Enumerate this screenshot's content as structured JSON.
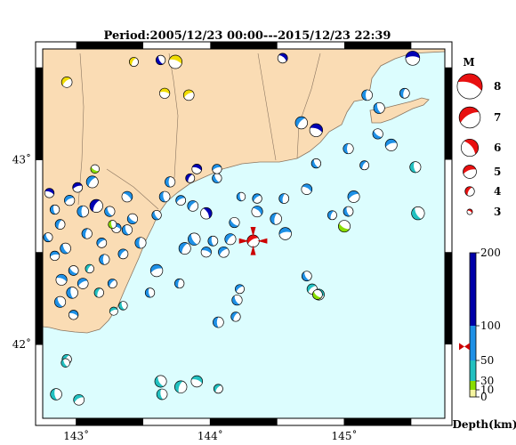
{
  "title": "Period:2005/12/23 00:00---2015/12/23 22:39",
  "map": {
    "lon_range": [
      142.75,
      145.75
    ],
    "lat_range": [
      41.6,
      43.6
    ],
    "lon_ticks": [
      {
        "value": 143,
        "label": "143˚"
      },
      {
        "value": 144,
        "label": "144˚"
      },
      {
        "value": 145,
        "label": "145˚"
      }
    ],
    "lat_ticks": [
      {
        "value": 43,
        "label": "43˚"
      },
      {
        "value": 42,
        "label": "42˚"
      }
    ],
    "colors": {
      "land": "#fadcb4",
      "sea": "#dcfdfe",
      "coast": "#8a7560"
    }
  },
  "magnitude_legend": {
    "title": "M",
    "entries": [
      {
        "label": "8",
        "mag": 8
      },
      {
        "label": "7",
        "mag": 7
      },
      {
        "label": "6",
        "mag": 6
      },
      {
        "label": "5",
        "mag": 5
      },
      {
        "label": "4",
        "mag": 4
      },
      {
        "label": "3",
        "mag": 3
      }
    ]
  },
  "depth_scale": {
    "label": "Depth(km)",
    "ticks": [
      {
        "label": "200",
        "value": 200
      },
      {
        "label": "100",
        "value": 100
      },
      {
        "label": "50",
        "value": 50
      },
      {
        "label": "30",
        "value": 30
      },
      {
        "label": "10",
        "value": 10
      },
      {
        "label": "0",
        "value": 0
      }
    ],
    "bands": [
      {
        "from": 0,
        "to": 10,
        "color": "#f5f5a0"
      },
      {
        "from": 10,
        "to": 30,
        "color": "#88dd00"
      },
      {
        "from": 30,
        "to": 50,
        "color": "#22c0c0"
      },
      {
        "from": 50,
        "to": 100,
        "color": "#1e90e6"
      },
      {
        "from": 100,
        "to": 200,
        "color": "#0000a8"
      }
    ],
    "marker_value": 70
  },
  "events": [
    {
      "lon": 142.93,
      "lat": 43.42,
      "mag": 4.3,
      "color": "#f0dc00",
      "rot": 140
    },
    {
      "lon": 143.74,
      "lat": 43.53,
      "mag": 5.0,
      "color": "#f0dc00",
      "rot": 200
    },
    {
      "lon": 143.43,
      "lat": 43.53,
      "mag": 3.9,
      "color": "#f0dc00",
      "rot": 120
    },
    {
      "lon": 143.63,
      "lat": 43.54,
      "mag": 4.0,
      "color": "#0000b4",
      "rot": 60
    },
    {
      "lon": 143.66,
      "lat": 43.36,
      "mag": 4.2,
      "color": "#f0dc00",
      "rot": 190
    },
    {
      "lon": 143.84,
      "lat": 43.35,
      "mag": 4.3,
      "color": "#f0dc00",
      "rot": 150
    },
    {
      "lon": 144.54,
      "lat": 43.55,
      "mag": 4.1,
      "color": "#0000b4",
      "rot": 220
    },
    {
      "lon": 145.51,
      "lat": 43.55,
      "mag": 5.2,
      "color": "#0000b4",
      "rot": 180
    },
    {
      "lon": 145.17,
      "lat": 43.35,
      "mag": 4.3,
      "color": "#1e90e6",
      "rot": 90
    },
    {
      "lon": 145.26,
      "lat": 43.28,
      "mag": 4.4,
      "color": "#1e90e6",
      "rot": 70
    },
    {
      "lon": 145.45,
      "lat": 43.36,
      "mag": 4.1,
      "color": "#1e90e6",
      "rot": 100
    },
    {
      "lon": 145.25,
      "lat": 43.14,
      "mag": 4.2,
      "color": "#1e90e6",
      "rot": 40
    },
    {
      "lon": 145.35,
      "lat": 43.08,
      "mag": 4.6,
      "color": "#1e90e6",
      "rot": 160
    },
    {
      "lon": 144.68,
      "lat": 43.2,
      "mag": 4.7,
      "color": "#1e90e6",
      "rot": 130
    },
    {
      "lon": 144.79,
      "lat": 43.16,
      "mag": 4.9,
      "color": "#0000b4",
      "rot": 200
    },
    {
      "lon": 145.03,
      "lat": 43.06,
      "mag": 4.2,
      "color": "#1e90e6",
      "rot": 90
    },
    {
      "lon": 144.79,
      "lat": 42.98,
      "mag": 4.0,
      "color": "#1e90e6",
      "rot": 60
    },
    {
      "lon": 145.15,
      "lat": 42.97,
      "mag": 3.9,
      "color": "#1e90e6",
      "rot": 120
    },
    {
      "lon": 145.53,
      "lat": 42.96,
      "mag": 4.4,
      "color": "#22c0c0",
      "rot": 80
    },
    {
      "lon": 144.72,
      "lat": 42.84,
      "mag": 4.3,
      "color": "#1e90e6",
      "rot": 210
    },
    {
      "lon": 145.07,
      "lat": 42.8,
      "mag": 4.6,
      "color": "#1e90e6",
      "rot": 150
    },
    {
      "lon": 145.03,
      "lat": 42.72,
      "mag": 4.1,
      "color": "#1e90e6",
      "rot": 70
    },
    {
      "lon": 144.91,
      "lat": 42.7,
      "mag": 3.9,
      "color": "#1e90e6",
      "rot": 110
    },
    {
      "lon": 145.0,
      "lat": 42.64,
      "mag": 4.6,
      "color": "#88dd00",
      "rot": 30
    },
    {
      "lon": 145.55,
      "lat": 42.71,
      "mag": 4.9,
      "color": "#22c0c0",
      "rot": 60
    },
    {
      "lon": 144.55,
      "lat": 42.79,
      "mag": 4.1,
      "color": "#1e90e6",
      "rot": 100
    },
    {
      "lon": 144.35,
      "lat": 42.79,
      "mag": 4.0,
      "color": "#1e90e6",
      "rot": 140
    },
    {
      "lon": 144.23,
      "lat": 42.8,
      "mag": 3.8,
      "color": "#1e90e6",
      "rot": 80
    },
    {
      "lon": 144.05,
      "lat": 42.9,
      "mag": 4.0,
      "color": "#1e90e6",
      "rot": 60
    },
    {
      "lon": 144.05,
      "lat": 42.95,
      "mag": 4.0,
      "color": "#1e90e6",
      "rot": 160
    },
    {
      "lon": 143.9,
      "lat": 42.95,
      "mag": 4.1,
      "color": "#0000b4",
      "rot": 200
    },
    {
      "lon": 143.85,
      "lat": 42.9,
      "mag": 3.9,
      "color": "#0000b4",
      "rot": 120
    },
    {
      "lon": 143.7,
      "lat": 42.88,
      "mag": 4.2,
      "color": "#1e90e6",
      "rot": 90
    },
    {
      "lon": 143.97,
      "lat": 42.71,
      "mag": 4.5,
      "color": "#0000b4",
      "rot": 240
    },
    {
      "lon": 143.87,
      "lat": 42.75,
      "mag": 4.3,
      "color": "#1e90e6",
      "rot": 130
    },
    {
      "lon": 143.78,
      "lat": 42.78,
      "mag": 4.1,
      "color": "#1e90e6",
      "rot": 150
    },
    {
      "lon": 143.66,
      "lat": 42.8,
      "mag": 4.3,
      "color": "#1e90e6",
      "rot": 80
    },
    {
      "lon": 143.6,
      "lat": 42.7,
      "mag": 4.0,
      "color": "#1e90e6",
      "rot": 60
    },
    {
      "lon": 144.18,
      "lat": 42.66,
      "mag": 4.2,
      "color": "#1e90e6",
      "rot": 40
    },
    {
      "lon": 144.35,
      "lat": 42.72,
      "mag": 4.4,
      "color": "#1e90e6",
      "rot": 220
    },
    {
      "lon": 144.49,
      "lat": 42.68,
      "mag": 4.5,
      "color": "#1e90e6",
      "rot": 100
    },
    {
      "lon": 144.56,
      "lat": 42.6,
      "mag": 4.7,
      "color": "#1e90e6",
      "rot": 170
    },
    {
      "lon": 144.15,
      "lat": 42.57,
      "mag": 4.4,
      "color": "#1e90e6",
      "rot": 130
    },
    {
      "lon": 144.02,
      "lat": 42.56,
      "mag": 4.1,
      "color": "#1e90e6",
      "rot": 80
    },
    {
      "lon": 143.88,
      "lat": 42.57,
      "mag": 4.7,
      "color": "#1e90e6",
      "rot": 60
    },
    {
      "lon": 144.1,
      "lat": 42.5,
      "mag": 4.3,
      "color": "#1e90e6",
      "rot": 140
    },
    {
      "lon": 143.97,
      "lat": 42.5,
      "mag": 4.2,
      "color": "#1e90e6",
      "rot": 200
    },
    {
      "lon": 143.81,
      "lat": 42.52,
      "mag": 4.6,
      "color": "#1e90e6",
      "rot": 120
    },
    {
      "lon": 143.6,
      "lat": 42.4,
      "mag": 4.7,
      "color": "#1e90e6",
      "rot": 160
    },
    {
      "lon": 143.48,
      "lat": 42.55,
      "mag": 4.4,
      "color": "#1e90e6",
      "rot": 90
    },
    {
      "lon": 143.38,
      "lat": 42.62,
      "mag": 4.2,
      "color": "#1e90e6",
      "rot": 70
    },
    {
      "lon": 143.35,
      "lat": 42.49,
      "mag": 4.1,
      "color": "#1e90e6",
      "rot": 130
    },
    {
      "lon": 143.42,
      "lat": 42.68,
      "mag": 4.2,
      "color": "#1e90e6",
      "rot": 40
    },
    {
      "lon": 143.3,
      "lat": 42.63,
      "mag": 4.0,
      "color": "#1e90e6",
      "rot": 200
    },
    {
      "lon": 143.25,
      "lat": 42.72,
      "mag": 4.2,
      "color": "#1e90e6",
      "rot": 60
    },
    {
      "lon": 143.15,
      "lat": 42.75,
      "mag": 4.9,
      "color": "#0000b4",
      "rot": 120
    },
    {
      "lon": 143.05,
      "lat": 42.72,
      "mag": 4.5,
      "color": "#1e90e6",
      "rot": 90
    },
    {
      "lon": 142.95,
      "lat": 42.78,
      "mag": 4.2,
      "color": "#1e90e6",
      "rot": 150
    },
    {
      "lon": 142.84,
      "lat": 42.73,
      "mag": 4.0,
      "color": "#1e90e6",
      "rot": 80
    },
    {
      "lon": 142.88,
      "lat": 42.65,
      "mag": 4.1,
      "color": "#1e90e6",
      "rot": 110
    },
    {
      "lon": 142.79,
      "lat": 42.58,
      "mag": 3.9,
      "color": "#1e90e6",
      "rot": 60
    },
    {
      "lon": 142.8,
      "lat": 42.82,
      "mag": 4.0,
      "color": "#0000b4",
      "rot": 200
    },
    {
      "lon": 143.01,
      "lat": 42.85,
      "mag": 4.1,
      "color": "#0000b4",
      "rot": 160
    },
    {
      "lon": 143.12,
      "lat": 42.88,
      "mag": 4.6,
      "color": "#1e90e6",
      "rot": 130
    },
    {
      "lon": 143.14,
      "lat": 42.95,
      "mag": 3.8,
      "color": "#88dd00",
      "rot": 30
    },
    {
      "lon": 143.38,
      "lat": 42.8,
      "mag": 4.3,
      "color": "#1e90e6",
      "rot": 220
    },
    {
      "lon": 143.27,
      "lat": 42.65,
      "mag": 3.7,
      "color": "#88dd00",
      "rot": 80
    },
    {
      "lon": 143.19,
      "lat": 42.55,
      "mag": 4.1,
      "color": "#1e90e6",
      "rot": 140
    },
    {
      "lon": 143.08,
      "lat": 42.6,
      "mag": 4.2,
      "color": "#1e90e6",
      "rot": 100
    },
    {
      "lon": 142.92,
      "lat": 42.52,
      "mag": 4.3,
      "color": "#1e90e6",
      "rot": 60
    },
    {
      "lon": 142.84,
      "lat": 42.48,
      "mag": 4.0,
      "color": "#1e90e6",
      "rot": 170
    },
    {
      "lon": 143.21,
      "lat": 42.46,
      "mag": 4.2,
      "color": "#1e90e6",
      "rot": 90
    },
    {
      "lon": 143.1,
      "lat": 42.41,
      "mag": 3.8,
      "color": "#22c0c0",
      "rot": 120
    },
    {
      "lon": 142.98,
      "lat": 42.4,
      "mag": 4.1,
      "color": "#1e90e6",
      "rot": 40
    },
    {
      "lon": 142.89,
      "lat": 42.35,
      "mag": 4.4,
      "color": "#1e90e6",
      "rot": 200
    },
    {
      "lon": 143.05,
      "lat": 42.33,
      "mag": 4.3,
      "color": "#1e90e6",
      "rot": 150
    },
    {
      "lon": 142.97,
      "lat": 42.28,
      "mag": 4.5,
      "color": "#1e90e6",
      "rot": 80
    },
    {
      "lon": 143.17,
      "lat": 42.28,
      "mag": 4.0,
      "color": "#22c0c0",
      "rot": 110
    },
    {
      "lon": 142.88,
      "lat": 42.23,
      "mag": 4.4,
      "color": "#1e90e6",
      "rot": 60
    },
    {
      "lon": 143.27,
      "lat": 42.33,
      "mag": 3.9,
      "color": "#1e90e6",
      "rot": 130
    },
    {
      "lon": 143.35,
      "lat": 42.21,
      "mag": 3.8,
      "color": "#22c0c0",
      "rot": 70
    },
    {
      "lon": 143.28,
      "lat": 42.18,
      "mag": 3.7,
      "color": "#22c0c0",
      "rot": 160
    },
    {
      "lon": 142.98,
      "lat": 42.16,
      "mag": 4.0,
      "color": "#1e90e6",
      "rot": 200
    },
    {
      "lon": 144.06,
      "lat": 42.12,
      "mag": 4.3,
      "color": "#1e90e6",
      "rot": 90
    },
    {
      "lon": 144.19,
      "lat": 42.15,
      "mag": 4.0,
      "color": "#1e90e6",
      "rot": 120
    },
    {
      "lon": 144.2,
      "lat": 42.24,
      "mag": 4.2,
      "color": "#1e90e6",
      "rot": 60
    },
    {
      "lon": 144.22,
      "lat": 42.3,
      "mag": 3.9,
      "color": "#1e90e6",
      "rot": 140
    },
    {
      "lon": 143.55,
      "lat": 42.28,
      "mag": 4.0,
      "color": "#1e90e6",
      "rot": 80
    },
    {
      "lon": 143.77,
      "lat": 42.33,
      "mag": 4.0,
      "color": "#1e90e6",
      "rot": 100
    },
    {
      "lon": 144.72,
      "lat": 42.37,
      "mag": 4.1,
      "color": "#1e90e6",
      "rot": 60
    },
    {
      "lon": 144.76,
      "lat": 42.3,
      "mag": 4.2,
      "color": "#22c0c0",
      "rot": 140
    },
    {
      "lon": 144.81,
      "lat": 42.27,
      "mag": 4.4,
      "color": "#22c0c0",
      "rot": 200
    },
    {
      "lon": 144.8,
      "lat": 42.27,
      "mag": 4.1,
      "color": "#88dd00",
      "rot": 40
    },
    {
      "lon": 142.93,
      "lat": 41.92,
      "mag": 4.0,
      "color": "#22c0c0",
      "rot": 120
    },
    {
      "lon": 142.92,
      "lat": 41.9,
      "mag": 3.8,
      "color": "#22c0c0",
      "rot": 60
    },
    {
      "lon": 142.85,
      "lat": 41.73,
      "mag": 4.5,
      "color": "#22c0c0",
      "rot": 80
    },
    {
      "lon": 143.02,
      "lat": 41.7,
      "mag": 4.3,
      "color": "#22c0c0",
      "rot": 150
    },
    {
      "lon": 143.63,
      "lat": 41.8,
      "mag": 4.6,
      "color": "#22c0c0",
      "rot": 60
    },
    {
      "lon": 143.78,
      "lat": 41.77,
      "mag": 4.7,
      "color": "#22c0c0",
      "rot": 110
    },
    {
      "lon": 143.9,
      "lat": 41.8,
      "mag": 4.5,
      "color": "#22c0c0",
      "rot": 200
    },
    {
      "lon": 144.06,
      "lat": 41.76,
      "mag": 3.9,
      "color": "#22c0c0",
      "rot": 130
    },
    {
      "lon": 143.64,
      "lat": 41.73,
      "mag": 4.3,
      "color": "#22c0c0",
      "rot": 80
    }
  ],
  "highlight_event": {
    "lon": 144.32,
    "lat": 42.56,
    "mag": 4.7,
    "color": "#e81010",
    "rot": 150
  }
}
